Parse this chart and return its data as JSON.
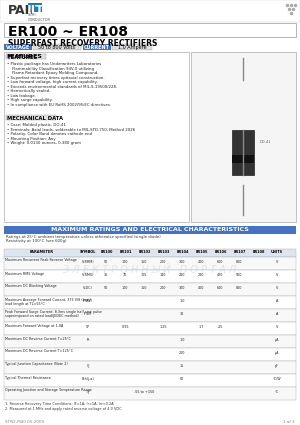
{
  "title_part": "ER100 ~ ER108",
  "subtitle": "SUPERFAST RECOVERY RECTIFIERS",
  "voltage_label": "VOLTAGE",
  "voltage_value": "50 to 800 Volts",
  "current_label": "CURRENT",
  "current_value": "1.0 Ampere",
  "features_title": "FEATURES",
  "features": [
    "Plastic package has Underwriters Laboratories",
    "  Flammability Classification 94V-0 utilizing",
    "  Flame Retardant Epoxy Molding Compound.",
    "Superfast recovery times eptiaxial construction.",
    "Low forward voltage, high current capability.",
    "Exceeds environmental standards of MIL-S-19500/228.",
    "Hermetically sealed.",
    "Low leakage.",
    "High surge capability.",
    "In compliance with EU RoHS 2002/95/EC directives."
  ],
  "mech_title": "MECHANICAL DATA",
  "mech_items": [
    "Case: Molded plastic, DO-41",
    "Terminals: Axial leads, solderable to MIL-STD-750, Method 2026",
    "Polarity: Color Band denotes cathode end",
    "Mounting Position: Any",
    "Weight: 0.0130 ounces, 0.380 gram"
  ],
  "table_title": "MAXIMUM RATINGS AND ELECTRICAL CHARACTERISTICS",
  "table_subtitle1": "Ratings at 25°C ambient temperature unless otherwise specified (single diode)",
  "table_subtitle2": "Resistivity at 100°C (see 600g)",
  "col_headers": [
    "PARAMETER",
    "SYMBOL",
    "ER100",
    "ER101",
    "ER102",
    "ER103",
    "ER104",
    "ER105",
    "ER106",
    "ER107",
    "ER108",
    "UNITS"
  ],
  "rows": [
    [
      "Maximum Recurrent Peak Reverse Voltage",
      "V(RRM)",
      "50",
      "100",
      "150",
      "200",
      "300",
      "400",
      "600",
      "800",
      ""
    ],
    [
      "Maximum RMS Voltage",
      "V(RMS)",
      "35",
      "70",
      "105",
      "140",
      "210",
      "280",
      "420",
      "560",
      ""
    ],
    [
      "Maximum DC Blocking Voltage",
      "V(DC)",
      "50",
      "100",
      "150",
      "200",
      "300",
      "400",
      "600",
      "800",
      ""
    ],
    [
      "Maximum Average Forward Current, 375 V/8 (Irms)\nlead length at TL=55°C",
      "IF(AV)",
      "",
      "",
      "",
      "",
      "1.0",
      "",
      "",
      "",
      ""
    ],
    [
      "Peak Forward Surge Current: 8.3ms single half sine pulse\nsuperimposed on rated load(JEDEC method)",
      "IFSM",
      "",
      "",
      "",
      "",
      "30",
      "",
      "",
      "",
      ""
    ],
    [
      "Maximum Forward Voltage at 1.0A",
      "VF",
      "",
      "0.95",
      "",
      "1.25",
      "",
      "1.7",
      "2.5",
      "",
      ""
    ],
    [
      "Maximum DC Reverse Current T=25°C",
      "IR",
      "",
      "",
      "",
      "",
      "1.0",
      "",
      "",
      "",
      ""
    ],
    [
      "Maximum DC Reverse Current T=125°C",
      "",
      "",
      "",
      "",
      "",
      "200",
      "",
      "",
      "",
      ""
    ],
    [
      "Typical Junction Capacitance (Note 2)",
      "CJ",
      "",
      "",
      "",
      "",
      "15",
      "",
      "",
      "",
      ""
    ],
    [
      "Typical Thermal Resistance",
      "Rth(j-a)",
      "",
      "",
      "",
      "",
      "50",
      "",
      "",
      "",
      ""
    ],
    [
      "Operating Junction and Storage Temperature Range",
      "TJ",
      "",
      "",
      "-55 to +150",
      "",
      "",
      "",
      "",
      "",
      ""
    ]
  ],
  "row_units": [
    "V",
    "V",
    "V",
    "A",
    "A",
    "V",
    "μA",
    "μA",
    "pF",
    "°C/W",
    "°C"
  ],
  "notes": [
    "1. Reverse Recovery Time Conditions: IF=1A, Ir=1A, Irr=0.2A",
    "2. Measured at 1 MHz and apply rated reverse voltage of 4.0 VDC"
  ],
  "bg_color": "#ffffff",
  "header_blue": "#4472c4",
  "light_blue": "#dce6f1",
  "panjit_blue": "#1a7abf",
  "border_color": "#999999",
  "table_line_color": "#aaaaaa",
  "text_color": "#000000",
  "watermark_color": "#c0d0e8"
}
